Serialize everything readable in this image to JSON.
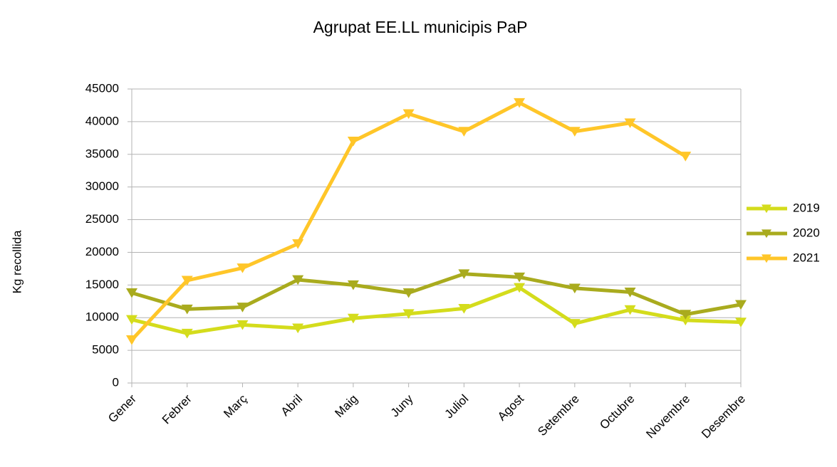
{
  "chart_data": {
    "type": "line",
    "title": "Agrupat EE.LL municipis PaP",
    "y_label": "Kg recollida",
    "categories": [
      "Gener",
      "Febrer",
      "Març",
      "Abril",
      "Maig",
      "Juny",
      "Juliol",
      "Agost",
      "Setembre",
      "Octubre",
      "Novembre",
      "Desembre"
    ],
    "series": [
      {
        "name": "2019",
        "color": "#d4dc1c",
        "values": [
          9700,
          7600,
          8900,
          8400,
          9900,
          10600,
          11400,
          14600,
          9100,
          11200,
          9600,
          9300
        ]
      },
      {
        "name": "2020",
        "color": "#a9ab1e",
        "values": [
          13800,
          11300,
          11600,
          15800,
          15000,
          13800,
          16700,
          16200,
          14500,
          13900,
          10500,
          12000
        ]
      },
      {
        "name": "2021",
        "color": "#ffc629",
        "values": [
          6600,
          15700,
          17600,
          21300,
          37000,
          41200,
          38500,
          42900,
          38500,
          39800,
          34700,
          null
        ]
      }
    ],
    "ylim": [
      0,
      45000
    ],
    "yticks": [
      0,
      5000,
      10000,
      15000,
      20000,
      25000,
      30000,
      35000,
      40000,
      45000
    ],
    "grid": true,
    "legend": "right"
  }
}
